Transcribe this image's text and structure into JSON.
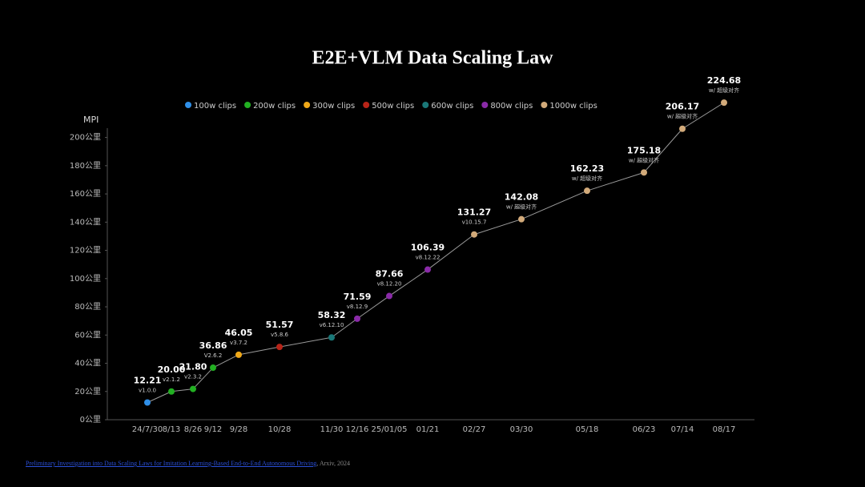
{
  "chart_data": {
    "type": "line",
    "title": "E2E+VLM Data Scaling Law",
    "y_label": "MPI",
    "categories": [
      "24/7/30",
      "8/13",
      "8/26",
      "9/12",
      "9/28",
      "10/28",
      "11/30",
      "12/16",
      "25/01/05",
      "01/21",
      "02/27",
      "03/30",
      "05/18",
      "06/23",
      "07/14",
      "08/17"
    ],
    "series": [
      {
        "name": "100w clips",
        "color": "#2f8fe8",
        "values": [
          12.21,
          null,
          null,
          null,
          null,
          null,
          null,
          null,
          null,
          null,
          null,
          null,
          null,
          null,
          null,
          null
        ]
      },
      {
        "name": "200w clips",
        "color": "#22b022",
        "values": [
          null,
          20.0,
          21.8,
          36.86,
          null,
          null,
          null,
          null,
          null,
          null,
          null,
          null,
          null,
          null,
          null,
          null
        ],
        "value_labels": [
          null,
          "20.00",
          "21.80",
          "36.86",
          null,
          null,
          null,
          null,
          null,
          null,
          null,
          null,
          null,
          null,
          null,
          null
        ]
      },
      {
        "name": "300w clips",
        "color": "#f0a818",
        "values": [
          null,
          null,
          null,
          null,
          46.05,
          null,
          null,
          null,
          null,
          null,
          null,
          null,
          null,
          null,
          null,
          null
        ]
      },
      {
        "name": "500w clips",
        "color": "#b82418",
        "values": [
          null,
          null,
          null,
          null,
          null,
          51.57,
          null,
          null,
          null,
          null,
          null,
          null,
          null,
          null,
          null,
          null
        ]
      },
      {
        "name": "600w clips",
        "color": "#1a7878",
        "values": [
          null,
          null,
          null,
          null,
          null,
          null,
          58.32,
          null,
          null,
          null,
          null,
          null,
          null,
          null,
          null,
          null
        ]
      },
      {
        "name": "800w clips",
        "color": "#8a2aa8",
        "values": [
          null,
          null,
          null,
          null,
          null,
          null,
          null,
          71.59,
          87.66,
          106.39,
          null,
          null,
          null,
          null,
          null,
          null
        ]
      },
      {
        "name": "1000w clips",
        "color": "#d2aa7a",
        "values": [
          null,
          null,
          null,
          null,
          null,
          null,
          null,
          null,
          null,
          null,
          131.27,
          142.08,
          162.23,
          175.18,
          206.17,
          224.68
        ]
      }
    ],
    "annotations": [
      "v1.0.0",
      "v2.1.2",
      "v2.3.2",
      "V2.6.2",
      "v3.7.2",
      "v5.8.6",
      "v6.12.10",
      "v8.12.9",
      "v8.12.20",
      "v8.12.22",
      "v10.15.7",
      "w/ 超级对齐",
      "w/ 超级对齐",
      "w/ 超级对齐",
      "w/ 超级对齐",
      "w/ 超级对齐"
    ],
    "ylim": [
      0,
      210
    ],
    "yticks": [
      {
        "value": 0,
        "label": "0公里"
      },
      {
        "value": 20,
        "label": "20公里"
      },
      {
        "value": 40,
        "label": "40公里"
      },
      {
        "value": 60,
        "label": "60公里"
      },
      {
        "value": 80,
        "label": "80公里"
      },
      {
        "value": 100,
        "label": "100公里"
      },
      {
        "value": 120,
        "label": "120公里"
      },
      {
        "value": 140,
        "label": "140公里"
      },
      {
        "value": 160,
        "label": "160公里"
      },
      {
        "value": 180,
        "label": "180公里"
      },
      {
        "value": 200,
        "label": "200公里"
      }
    ],
    "line_color": "#9a9a9a"
  },
  "footer": {
    "link": "Preliminary Investigation into Data Scaling Laws for Imitation Learning-Based End-to-End Autonomous Driving",
    "suffix": ", Arxiv, 2024"
  }
}
